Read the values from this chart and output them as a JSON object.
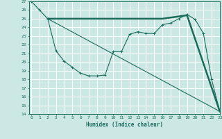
{
  "xlabel": "Humidex (Indice chaleur)",
  "bg_color": "#cce8e4",
  "grid_color": "#ffffff",
  "line_color": "#1a6b5a",
  "ylim": [
    14,
    27
  ],
  "xlim": [
    -0.3,
    23
  ],
  "yticks": [
    14,
    15,
    16,
    17,
    18,
    19,
    20,
    21,
    22,
    23,
    24,
    25,
    26,
    27
  ],
  "xticks": [
    0,
    1,
    2,
    3,
    4,
    5,
    6,
    7,
    8,
    9,
    10,
    11,
    12,
    13,
    14,
    15,
    16,
    17,
    18,
    19,
    20,
    21,
    22,
    23
  ],
  "curve1_x": [
    0,
    1,
    2,
    3,
    4,
    5,
    6,
    7,
    8,
    9,
    10,
    11,
    12,
    13,
    14,
    15,
    16,
    17,
    18,
    19,
    20,
    21,
    22,
    23
  ],
  "curve1_y": [
    27,
    26,
    25,
    21.3,
    20.1,
    19.4,
    18.7,
    18.4,
    18.4,
    18.5,
    21.2,
    21.2,
    23.2,
    23.5,
    23.3,
    23.3,
    24.3,
    24.5,
    25.0,
    25.5,
    24.9,
    23.3,
    18.0,
    14.3
  ],
  "curve2_x": [
    2,
    9.5,
    16.0,
    19.0,
    23
  ],
  "curve2_y": [
    25,
    25,
    25,
    25.4,
    14.3
  ],
  "curve3_x": [
    2,
    23
  ],
  "curve3_y": [
    25,
    14.3
  ]
}
